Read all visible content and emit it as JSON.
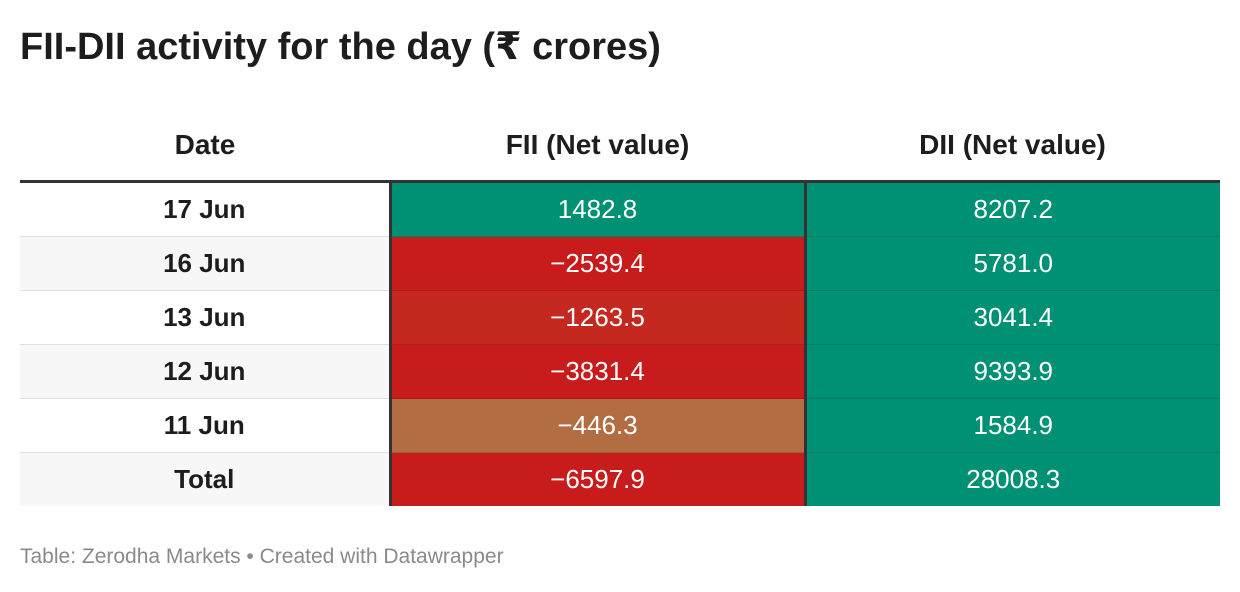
{
  "title": "FII-DII activity for the day (₹ crores)",
  "footer": "Table: Zerodha Markets • Created with Datawrapper",
  "colors": {
    "positive": "#009174",
    "negative_strong": "#c81b1c",
    "negative_mid": "#c4281f",
    "negative_light": "#b26d43"
  },
  "chart_data": {
    "type": "table",
    "columns": [
      "Date",
      "FII (Net value)",
      "DII (Net value)"
    ],
    "rows": [
      {
        "date": "17 Jun",
        "fii": "1482.8",
        "dii": "8207.2",
        "fii_color": "#009174",
        "dii_color": "#009174"
      },
      {
        "date": "16 Jun",
        "fii": "−2539.4",
        "dii": "5781.0",
        "fii_color": "#c81b1c",
        "dii_color": "#009174"
      },
      {
        "date": "13 Jun",
        "fii": "−1263.5",
        "dii": "3041.4",
        "fii_color": "#c4281f",
        "dii_color": "#009174"
      },
      {
        "date": "12 Jun",
        "fii": "−3831.4",
        "dii": "9393.9",
        "fii_color": "#c81b1c",
        "dii_color": "#009174"
      },
      {
        "date": "11 Jun",
        "fii": "−446.3",
        "dii": "1584.9",
        "fii_color": "#b26d43",
        "dii_color": "#009174"
      },
      {
        "date": "Total",
        "fii": "−6597.9",
        "dii": "28008.3",
        "fii_color": "#c81b1c",
        "dii_color": "#009174"
      }
    ]
  }
}
